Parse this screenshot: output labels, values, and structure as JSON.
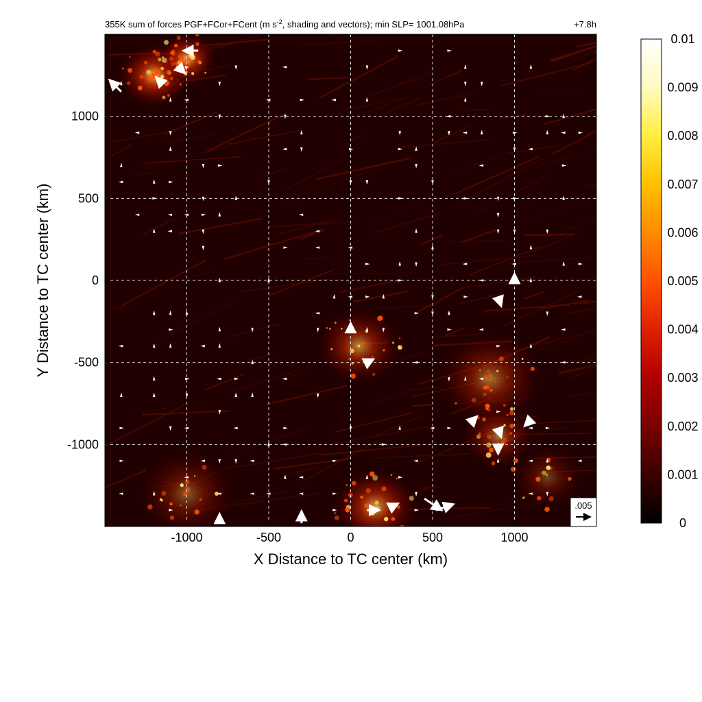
{
  "chart_data": {
    "type": "heatmap",
    "title_pre": "355K sum of forces PGF+FCor+FCent (m s",
    "title_sup": "-2",
    "title_post": ", shading and vectors); min SLP= 1001.08hPa",
    "time_label": "+7.8h",
    "xlabel": "X Distance to TC center (km)",
    "ylabel": "Y Distance to TC center (km)",
    "xlim": [
      -1500,
      1500
    ],
    "ylim": [
      -1500,
      1500
    ],
    "xticks": [
      -1000,
      -500,
      0,
      500,
      1000
    ],
    "yticks": [
      -1000,
      -500,
      0,
      500,
      1000
    ],
    "grid": true,
    "colorbar": {
      "range": [
        0,
        0.01
      ],
      "ticks": [
        "0",
        "0.001",
        "0.002",
        "0.003",
        "0.004",
        "0.005",
        "0.006",
        "0.007",
        "0.008",
        "0.009",
        "0.01"
      ],
      "colors": [
        "#000000",
        "#3a0000",
        "#7a0000",
        "#b00000",
        "#e02000",
        "#ff5000",
        "#ff8c00",
        "#ffc000",
        "#ffee40",
        "#fffbc0",
        "#ffffff"
      ]
    },
    "reference_vector_label": ".005",
    "hotspots": [
      {
        "x": -1200,
        "y": 1250,
        "intensity": 0.009,
        "radius": 220
      },
      {
        "x": -1000,
        "y": 1350,
        "intensity": 0.008,
        "radius": 180
      },
      {
        "x": 50,
        "y": -400,
        "intensity": 0.006,
        "radius": 260
      },
      {
        "x": 850,
        "y": -600,
        "intensity": 0.005,
        "radius": 320
      },
      {
        "x": 900,
        "y": -950,
        "intensity": 0.005,
        "radius": 220
      },
      {
        "x": 150,
        "y": -1380,
        "intensity": 0.007,
        "radius": 260
      },
      {
        "x": -1000,
        "y": -1300,
        "intensity": 0.004,
        "radius": 300
      },
      {
        "x": 1200,
        "y": -1200,
        "intensity": 0.003,
        "radius": 220
      }
    ],
    "vectors": [
      {
        "x": -1400,
        "y": 1150,
        "u": -0.004,
        "v": 0.004
      },
      {
        "x": -930,
        "y": 1400,
        "u": -0.005,
        "v": 0
      },
      {
        "x": -1050,
        "y": 1300,
        "u": 0.002,
        "v": -0.002
      },
      {
        "x": -1150,
        "y": 1200,
        "u": -0.002,
        "v": 0.002
      },
      {
        "x": 100,
        "y": -500,
        "u": 0.002,
        "v": 0.001
      },
      {
        "x": 0,
        "y": -300,
        "u": 0,
        "v": 0.002
      },
      {
        "x": 900,
        "y": -100,
        "u": 0.001,
        "v": -0.003
      },
      {
        "x": 1000,
        "y": 0,
        "u": 0,
        "v": 0.002
      },
      {
        "x": 900,
        "y": -1000,
        "u": 0,
        "v": -0.003
      },
      {
        "x": 900,
        "y": -900,
        "u": 0.001,
        "v": -0.003
      },
      {
        "x": 450,
        "y": -1330,
        "u": 0.006,
        "v": -0.004
      },
      {
        "x": 520,
        "y": -1400,
        "u": 0.006,
        "v": 0.002
      },
      {
        "x": 100,
        "y": -1400,
        "u": 0.004,
        "v": 0
      },
      {
        "x": 250,
        "y": -1380,
        "u": 0.002,
        "v": 0.001
      },
      {
        "x": -800,
        "y": -1480,
        "u": 0,
        "v": 0.003
      },
      {
        "x": -300,
        "y": -1480,
        "u": 0,
        "v": 0.004
      },
      {
        "x": 750,
        "y": -850,
        "u": 0.001,
        "v": 0.001
      },
      {
        "x": 1100,
        "y": -850,
        "u": -0.002,
        "v": -0.002
      }
    ],
    "small_arrow_dirs": [
      "up",
      "right",
      "down",
      "left"
    ]
  }
}
